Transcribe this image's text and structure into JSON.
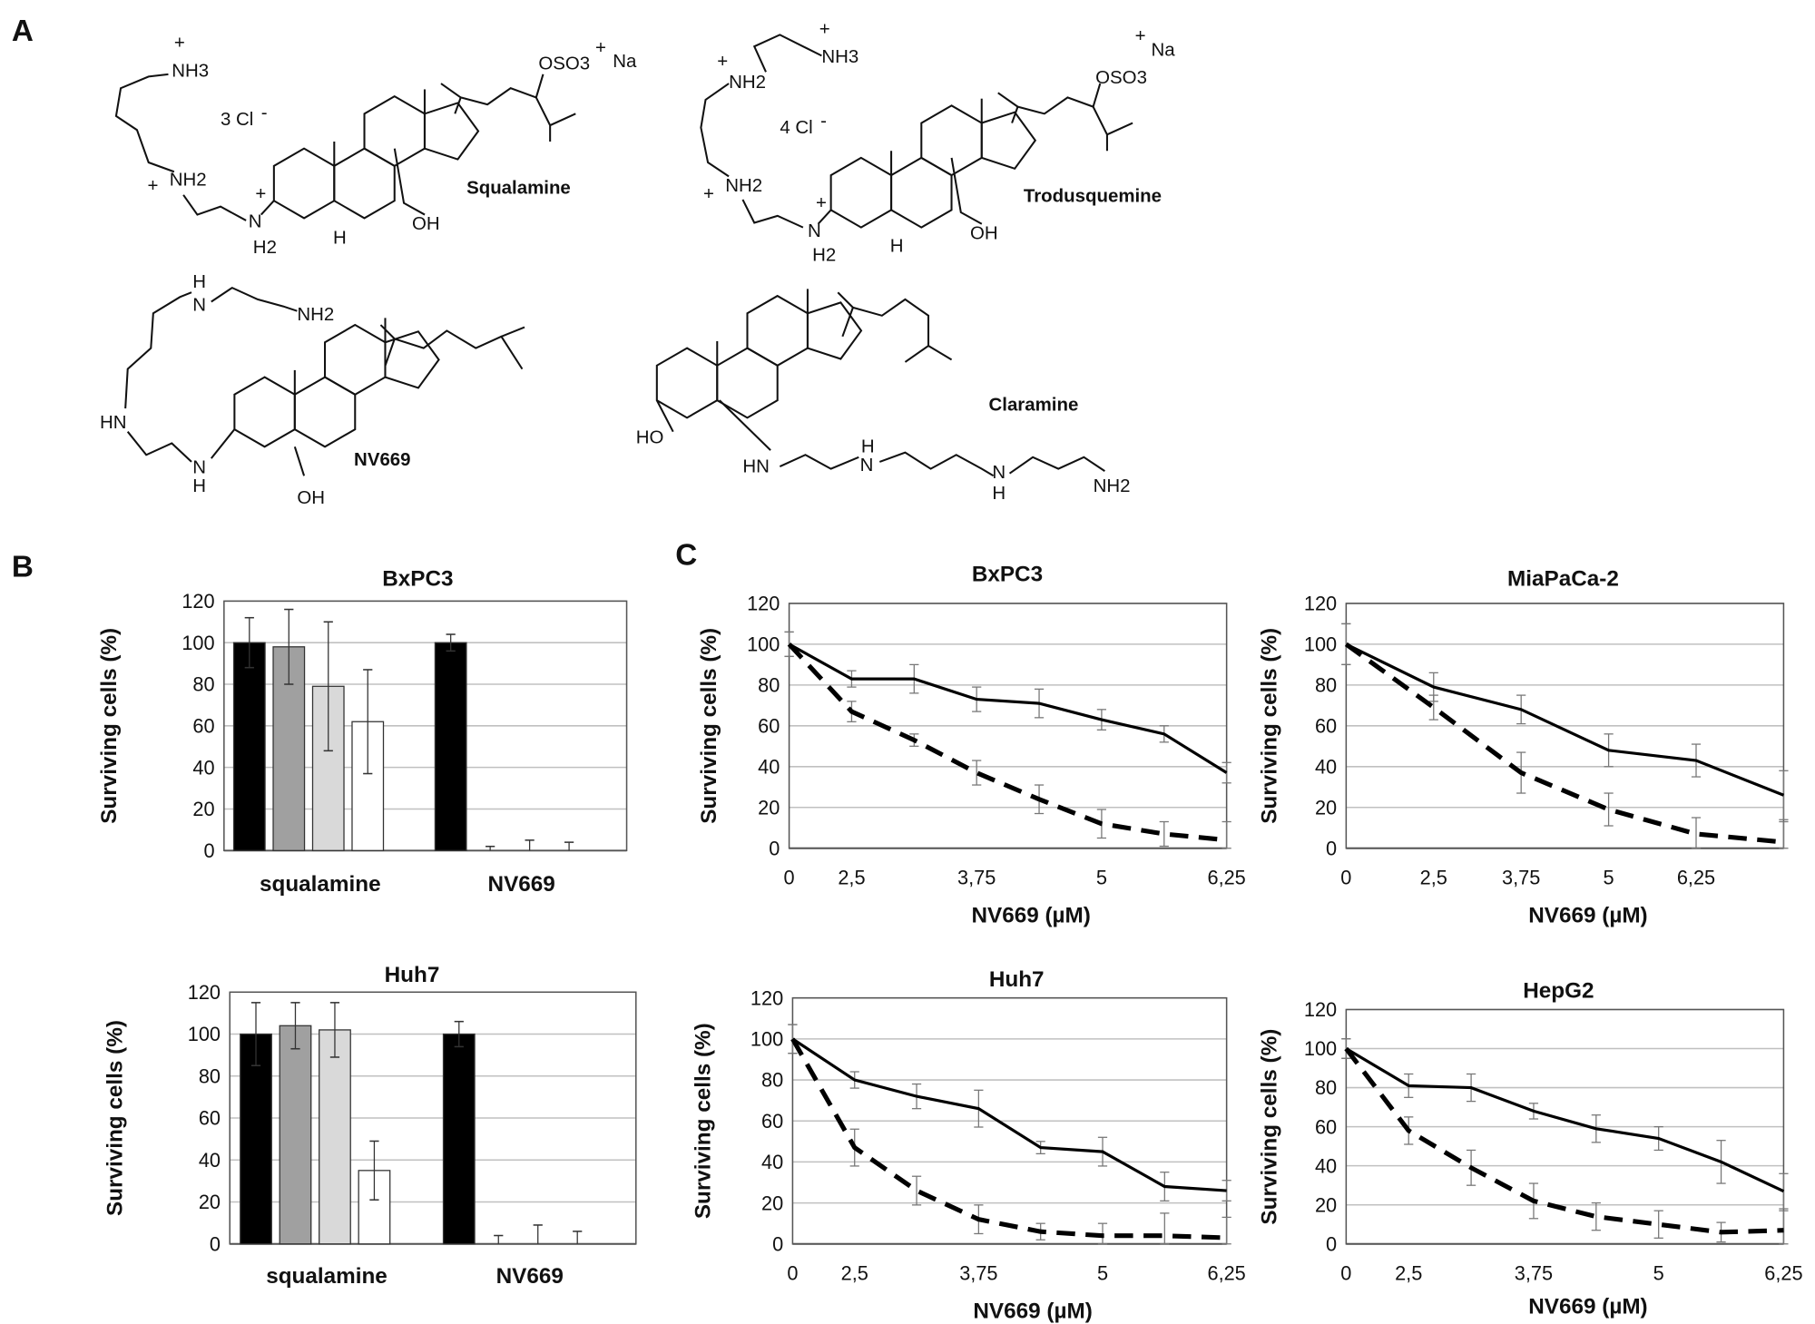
{
  "panel_a": {
    "label": "A",
    "structures": {
      "squalamine": {
        "name": "Squalamine",
        "nh3": "NH3",
        "plus": "+",
        "counterion": "3 Cl",
        "minus": "-",
        "nh2": "NH2",
        "n": "N",
        "h2": "H2",
        "h": "H",
        "oh": "OH",
        "oso3": "OSO3",
        "na": "Na"
      },
      "trodusquemine": {
        "name": "Trodusquemine",
        "nh3": "NH3",
        "nh2a": "NH2",
        "plus": "+",
        "counterion": "4 Cl",
        "minus": "-",
        "nh2": "NH2",
        "n": "N",
        "h2": "H2",
        "h": "H",
        "oh": "OH",
        "oso3": "OSO3",
        "na": "Na"
      },
      "nv669": {
        "name": "NV669",
        "nh2": "NH2",
        "h_top": "H",
        "n_top": "N",
        "hn": "HN",
        "n": "N",
        "h": "H",
        "oh": "OH"
      },
      "claramine": {
        "name": "Claramine",
        "ho": "HO",
        "hn": "HN",
        "n1": "N",
        "h1": "H",
        "n2": "N",
        "h2": "H",
        "nh2": "NH2"
      }
    }
  },
  "panel_b": {
    "label": "B"
  },
  "panel_c": {
    "label": "C"
  },
  "colors": {
    "bar_series": [
      "#000000",
      "#a0a0a0",
      "#d9d9d9",
      "#ffffff"
    ],
    "line": "#000000",
    "grid": "#c0c0c0"
  },
  "chart_data": [
    {
      "panel": "B",
      "type": "bar",
      "title": "BxPC3",
      "categories": [
        "squalamine",
        "NV669"
      ],
      "ylabel": "Surviving cells (%)",
      "ylim": [
        0,
        120
      ],
      "yticks": [
        0,
        20,
        40,
        60,
        80,
        100,
        120
      ],
      "grid": true,
      "series_count": 4,
      "values": [
        [
          100,
          98,
          79,
          62
        ],
        [
          100,
          0,
          0,
          0
        ]
      ],
      "errors": [
        [
          12,
          18,
          31,
          25
        ],
        [
          4,
          2,
          5,
          4
        ]
      ]
    },
    {
      "panel": "B",
      "type": "bar",
      "title": "Huh7",
      "categories": [
        "squalamine",
        "NV669"
      ],
      "ylabel": "Surviving cells (%)",
      "ylim": [
        0,
        120
      ],
      "yticks": [
        0,
        20,
        40,
        60,
        80,
        100,
        120
      ],
      "grid": true,
      "series_count": 4,
      "values": [
        [
          100,
          104,
          102,
          35
        ],
        [
          100,
          0,
          0,
          0
        ]
      ],
      "errors": [
        [
          15,
          11,
          13,
          14
        ],
        [
          6,
          4,
          9,
          6
        ]
      ]
    },
    {
      "panel": "C",
      "type": "line",
      "title": "BxPC3",
      "xlabel": "NV669 (µM)",
      "ylabel": "Surviving cells (%)",
      "ylim": [
        0,
        120
      ],
      "yticks": [
        0,
        20,
        40,
        60,
        80,
        100,
        120
      ],
      "grid": true,
      "x_ticks": [
        {
          "index": 0,
          "label": "0"
        },
        {
          "index": 1,
          "label": "2,5"
        },
        {
          "index": 3,
          "label": "3,75"
        },
        {
          "index": 5,
          "label": "5"
        },
        {
          "index": 7,
          "label": "6,25"
        }
      ],
      "series": [
        {
          "style": "solid",
          "values": [
            100,
            83,
            83,
            73,
            71,
            63,
            56,
            37
          ],
          "errors": [
            6,
            4,
            7,
            6,
            7,
            5,
            4,
            5
          ]
        },
        {
          "style": "dashed",
          "values": [
            100,
            67,
            53,
            37,
            24,
            12,
            7,
            4
          ],
          "errors": [
            6,
            5,
            3,
            6,
            7,
            7,
            6,
            9
          ]
        }
      ]
    },
    {
      "panel": "C",
      "type": "line",
      "title": "MiaPaCa-2",
      "xlabel": "NV669 (µM)",
      "ylabel": "Surviving cells (%)",
      "ylim": [
        0,
        120
      ],
      "yticks": [
        0,
        20,
        40,
        60,
        80,
        100,
        120
      ],
      "grid": true,
      "x_ticks": [
        {
          "index": 0,
          "label": "0"
        },
        {
          "index": 1,
          "label": "2,5"
        },
        {
          "index": 2,
          "label": "3,75"
        },
        {
          "index": 3,
          "label": "5"
        },
        {
          "index": 4,
          "label": "6,25"
        }
      ],
      "series": [
        {
          "style": "solid",
          "values": [
            100,
            79,
            68,
            48,
            43,
            26
          ],
          "errors": [
            10,
            7,
            7,
            8,
            8,
            12
          ]
        },
        {
          "style": "dashed",
          "values": [
            100,
            69,
            37,
            19,
            7,
            3
          ],
          "errors": [
            10,
            6,
            10,
            8,
            8,
            10
          ]
        }
      ]
    },
    {
      "panel": "C",
      "type": "line",
      "title": "Huh7",
      "xlabel": "NV669 (µM)",
      "ylabel": "Surviving cells (%)",
      "ylim": [
        0,
        120
      ],
      "yticks": [
        0,
        20,
        40,
        60,
        80,
        100,
        120
      ],
      "grid": true,
      "x_ticks": [
        {
          "index": 0,
          "label": "0"
        },
        {
          "index": 1,
          "label": "2,5"
        },
        {
          "index": 3,
          "label": "3,75"
        },
        {
          "index": 5,
          "label": "5"
        },
        {
          "index": 7,
          "label": "6,25"
        }
      ],
      "series": [
        {
          "style": "solid",
          "values": [
            100,
            80,
            72,
            66,
            47,
            45,
            28,
            26
          ],
          "errors": [
            7,
            4,
            6,
            9,
            3,
            7,
            7,
            5
          ]
        },
        {
          "style": "dashed",
          "values": [
            100,
            47,
            26,
            12,
            6,
            4,
            4,
            3
          ],
          "errors": [
            7,
            9,
            7,
            7,
            4,
            6,
            11,
            10
          ]
        }
      ]
    },
    {
      "panel": "C",
      "type": "line",
      "title": "HepG2",
      "xlabel": "NV669 (µM)",
      "ylabel": "Surviving cells (%)",
      "ylim": [
        0,
        120
      ],
      "yticks": [
        0,
        20,
        40,
        60,
        80,
        100,
        120
      ],
      "grid": true,
      "x_ticks": [
        {
          "index": 0,
          "label": "0"
        },
        {
          "index": 1,
          "label": "2,5"
        },
        {
          "index": 3,
          "label": "3,75"
        },
        {
          "index": 5,
          "label": "5"
        },
        {
          "index": 7,
          "label": "6,25"
        }
      ],
      "series": [
        {
          "style": "solid",
          "values": [
            100,
            81,
            80,
            68,
            59,
            54,
            42,
            27
          ],
          "errors": [
            5,
            6,
            7,
            4,
            7,
            6,
            11,
            9
          ]
        },
        {
          "style": "dashed",
          "values": [
            100,
            58,
            39,
            22,
            14,
            10,
            6,
            7
          ],
          "errors": [
            5,
            7,
            9,
            9,
            7,
            7,
            5,
            10
          ]
        }
      ]
    }
  ]
}
